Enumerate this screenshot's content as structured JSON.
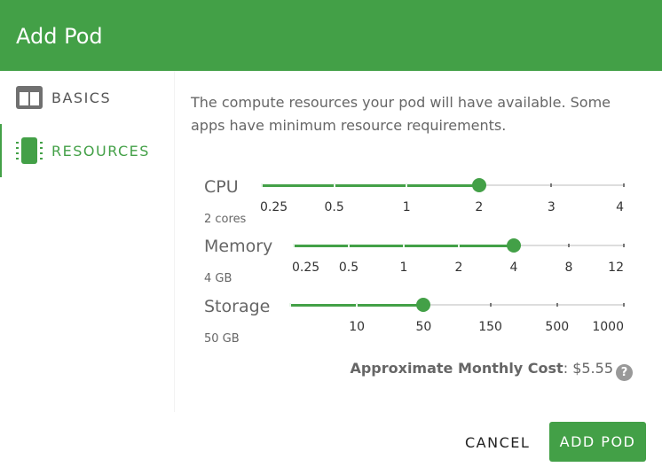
{
  "header": {
    "title": "Add Pod"
  },
  "sidebar": {
    "items": [
      {
        "label": "BASICS",
        "icon": "columns-icon",
        "active": false
      },
      {
        "label": "RESOURCES",
        "icon": "chip-icon",
        "active": true
      }
    ]
  },
  "main": {
    "description": "The compute resources your pod will have available. Some apps have minimum resource requirements.",
    "sliders": [
      {
        "label": "CPU",
        "value_text": "2 cores",
        "options": [
          "0.25",
          "0.5",
          "1",
          "2",
          "3",
          "4"
        ],
        "selected": 3
      },
      {
        "label": "Memory",
        "value_text": "4 GB",
        "options": [
          "0.25",
          "0.5",
          "1",
          "2",
          "4",
          "8",
          "12"
        ],
        "selected": 4
      },
      {
        "label": "Storage",
        "value_text": "50 GB",
        "options": [
          "",
          "10",
          "50",
          "150",
          "500",
          "1000"
        ],
        "selected": 2
      }
    ],
    "cost": {
      "label": "Approximate Monthly Cost",
      "value": "$5.55",
      "help_icon": "?"
    }
  },
  "footer": {
    "cancel": "CANCEL",
    "add": "ADD POD"
  },
  "colors": {
    "accent": "#43a047"
  }
}
